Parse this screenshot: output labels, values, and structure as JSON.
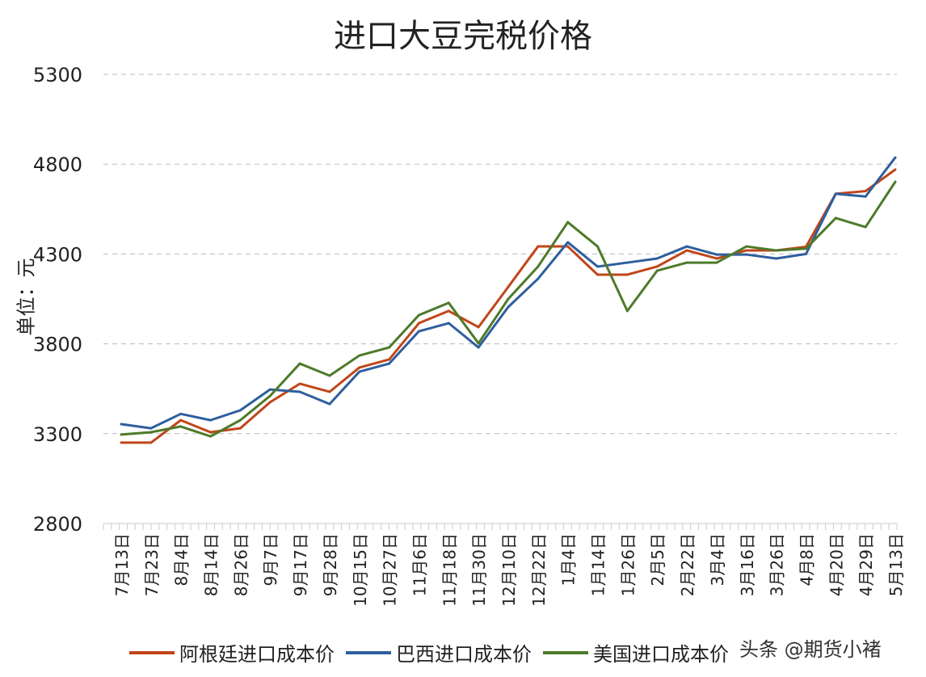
{
  "chart_data": {
    "type": "line",
    "title": "进口大豆完税价格",
    "ylabel": "单位：元",
    "xlabel": "",
    "ylim": [
      2800,
      5300
    ],
    "yticks": [
      2800,
      3300,
      3800,
      4300,
      4800,
      5300
    ],
    "grid": "horizontal-dashed",
    "legend_position": "bottom",
    "categories": [
      "7月13日",
      "7月23日",
      "8月4日",
      "8月14日",
      "8月26日",
      "9月7日",
      "9月17日",
      "9月28日",
      "10月15日",
      "10月27日",
      "11月6日",
      "11月18日",
      "11月30日",
      "12月10日",
      "12月22日",
      "1月4日",
      "1月14日",
      "1月26日",
      "2月5日",
      "2月22日",
      "3月4日",
      "3月16日",
      "3月26日",
      "4月8日",
      "4月20日",
      "4月29日",
      "5月13日"
    ],
    "series": [
      {
        "name": "阿根廷进口成本价",
        "color": "#c0461a",
        "values": [
          3250,
          3250,
          3375,
          3308,
          3330,
          3475,
          3578,
          3533,
          3668,
          3713,
          3915,
          3983,
          3893,
          4117,
          4342,
          4342,
          4185,
          4185,
          4230,
          4320,
          4275,
          4320,
          4320,
          4340,
          4635,
          4650,
          4770
        ]
      },
      {
        "name": "巴西进口成本价",
        "color": "#2e5f9e",
        "values": [
          3353,
          3330,
          3410,
          3375,
          3430,
          3546,
          3533,
          3465,
          3645,
          3690,
          3870,
          3915,
          3780,
          4005,
          4162,
          4365,
          4230,
          4252,
          4275,
          4342,
          4297,
          4297,
          4275,
          4300,
          4635,
          4620,
          4837
        ]
      },
      {
        "name": "美国进口成本价",
        "color": "#4e7a2a",
        "values": [
          3295,
          3308,
          3340,
          3285,
          3375,
          3510,
          3690,
          3623,
          3735,
          3780,
          3960,
          4028,
          3803,
          4050,
          4230,
          4477,
          4342,
          3983,
          4207,
          4252,
          4252,
          4342,
          4320,
          4330,
          4500,
          4450,
          4702
        ]
      }
    ]
  },
  "watermark": "头条 @期货小褚"
}
